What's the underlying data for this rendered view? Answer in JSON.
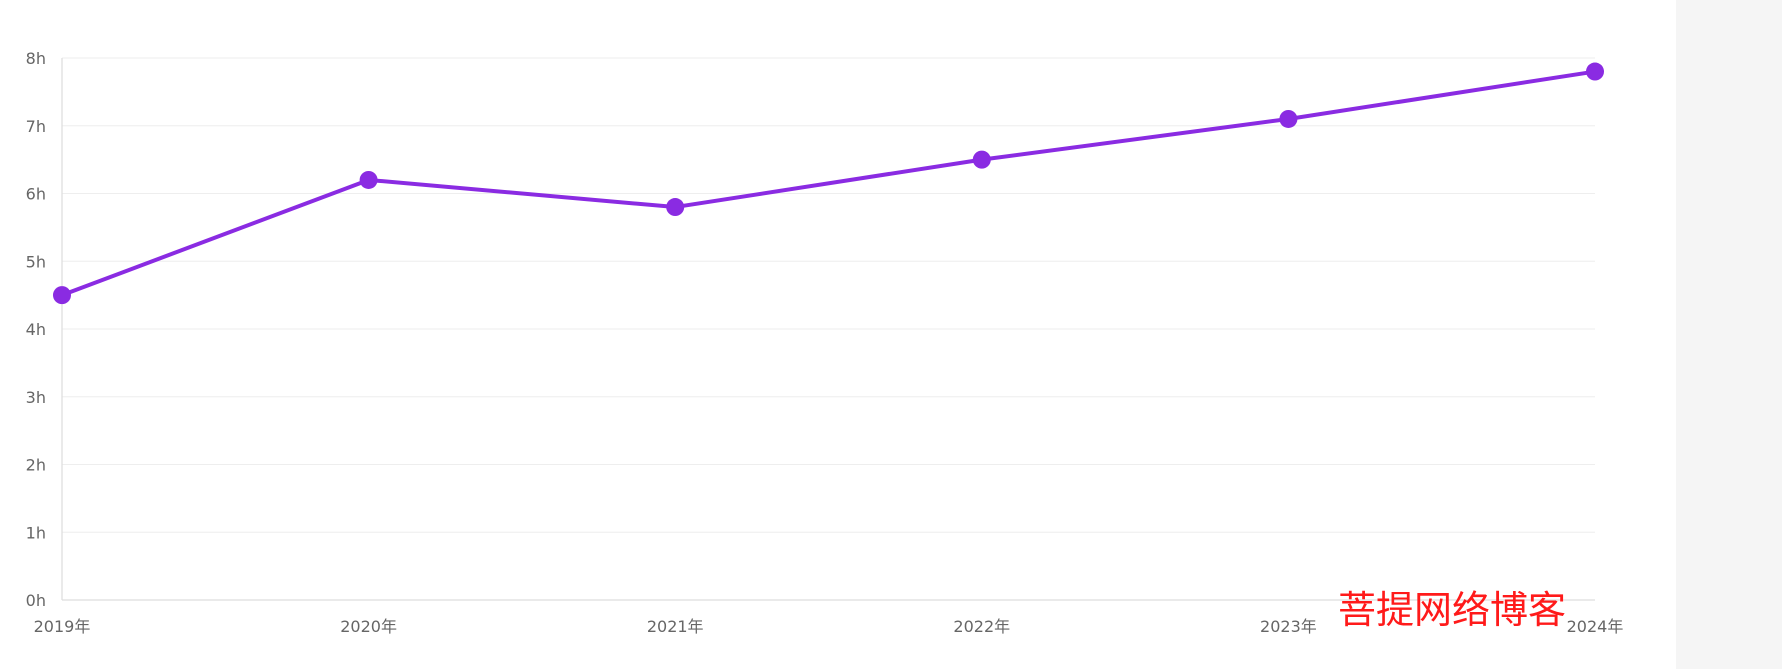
{
  "chart_data": {
    "type": "line",
    "categories": [
      "2019年",
      "2020年",
      "2021年",
      "2022年",
      "2023年",
      "2024年"
    ],
    "series": [
      {
        "values": [
          4.5,
          6.2,
          5.8,
          6.5,
          7.1,
          7.8
        ]
      }
    ],
    "y_ticks": [
      "0h",
      "1h",
      "2h",
      "3h",
      "4h",
      "5h",
      "6h",
      "7h",
      "8h"
    ],
    "ylim": [
      0,
      8
    ],
    "grid": true,
    "line_color": "#8a2be2",
    "grid_color": "#eeeeee",
    "axis_color": "#dddddd",
    "label_color": "#666666"
  },
  "watermark": {
    "text": "菩提网络博客",
    "color": "#ff1a1a"
  }
}
